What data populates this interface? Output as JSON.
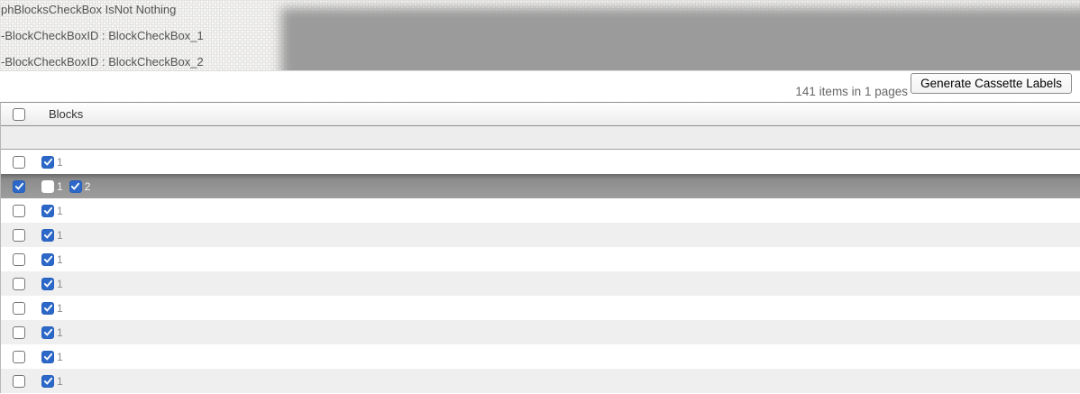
{
  "debug_panel": {
    "lines": [
      "phBlocksCheckBox IsNot Nothing",
      "-BlockCheckBoxID : BlockCheckBox_1",
      "-BlockCheckBoxID : BlockCheckBox_2"
    ]
  },
  "toolbar": {
    "items_summary": "141 items in 1 pages",
    "generate_button_label": "Generate Cassette Labels"
  },
  "table": {
    "header": {
      "column_label": "Blocks",
      "select_all_checked": false
    },
    "rows": [
      {
        "selected": false,
        "checked": false,
        "blocks": [
          {
            "label": "1",
            "checked": true
          }
        ]
      },
      {
        "selected": true,
        "checked": true,
        "blocks": [
          {
            "label": "1",
            "checked": false
          },
          {
            "label": "2",
            "checked": true
          }
        ]
      },
      {
        "selected": false,
        "checked": false,
        "blocks": [
          {
            "label": "1",
            "checked": true
          }
        ]
      },
      {
        "selected": false,
        "checked": false,
        "blocks": [
          {
            "label": "1",
            "checked": true
          }
        ]
      },
      {
        "selected": false,
        "checked": false,
        "blocks": [
          {
            "label": "1",
            "checked": true
          }
        ]
      },
      {
        "selected": false,
        "checked": false,
        "blocks": [
          {
            "label": "1",
            "checked": true
          }
        ]
      },
      {
        "selected": false,
        "checked": false,
        "blocks": [
          {
            "label": "1",
            "checked": true
          }
        ]
      },
      {
        "selected": false,
        "checked": false,
        "blocks": [
          {
            "label": "1",
            "checked": true
          }
        ]
      },
      {
        "selected": false,
        "checked": false,
        "blocks": [
          {
            "label": "1",
            "checked": true
          }
        ]
      },
      {
        "selected": false,
        "checked": false,
        "blocks": [
          {
            "label": "1",
            "checked": true
          }
        ]
      }
    ]
  },
  "colors": {
    "checkbox_blue": "#2c68c8",
    "selected_row_gray": "#8c8c8c",
    "smudge_gray": "#9b9b9b"
  }
}
